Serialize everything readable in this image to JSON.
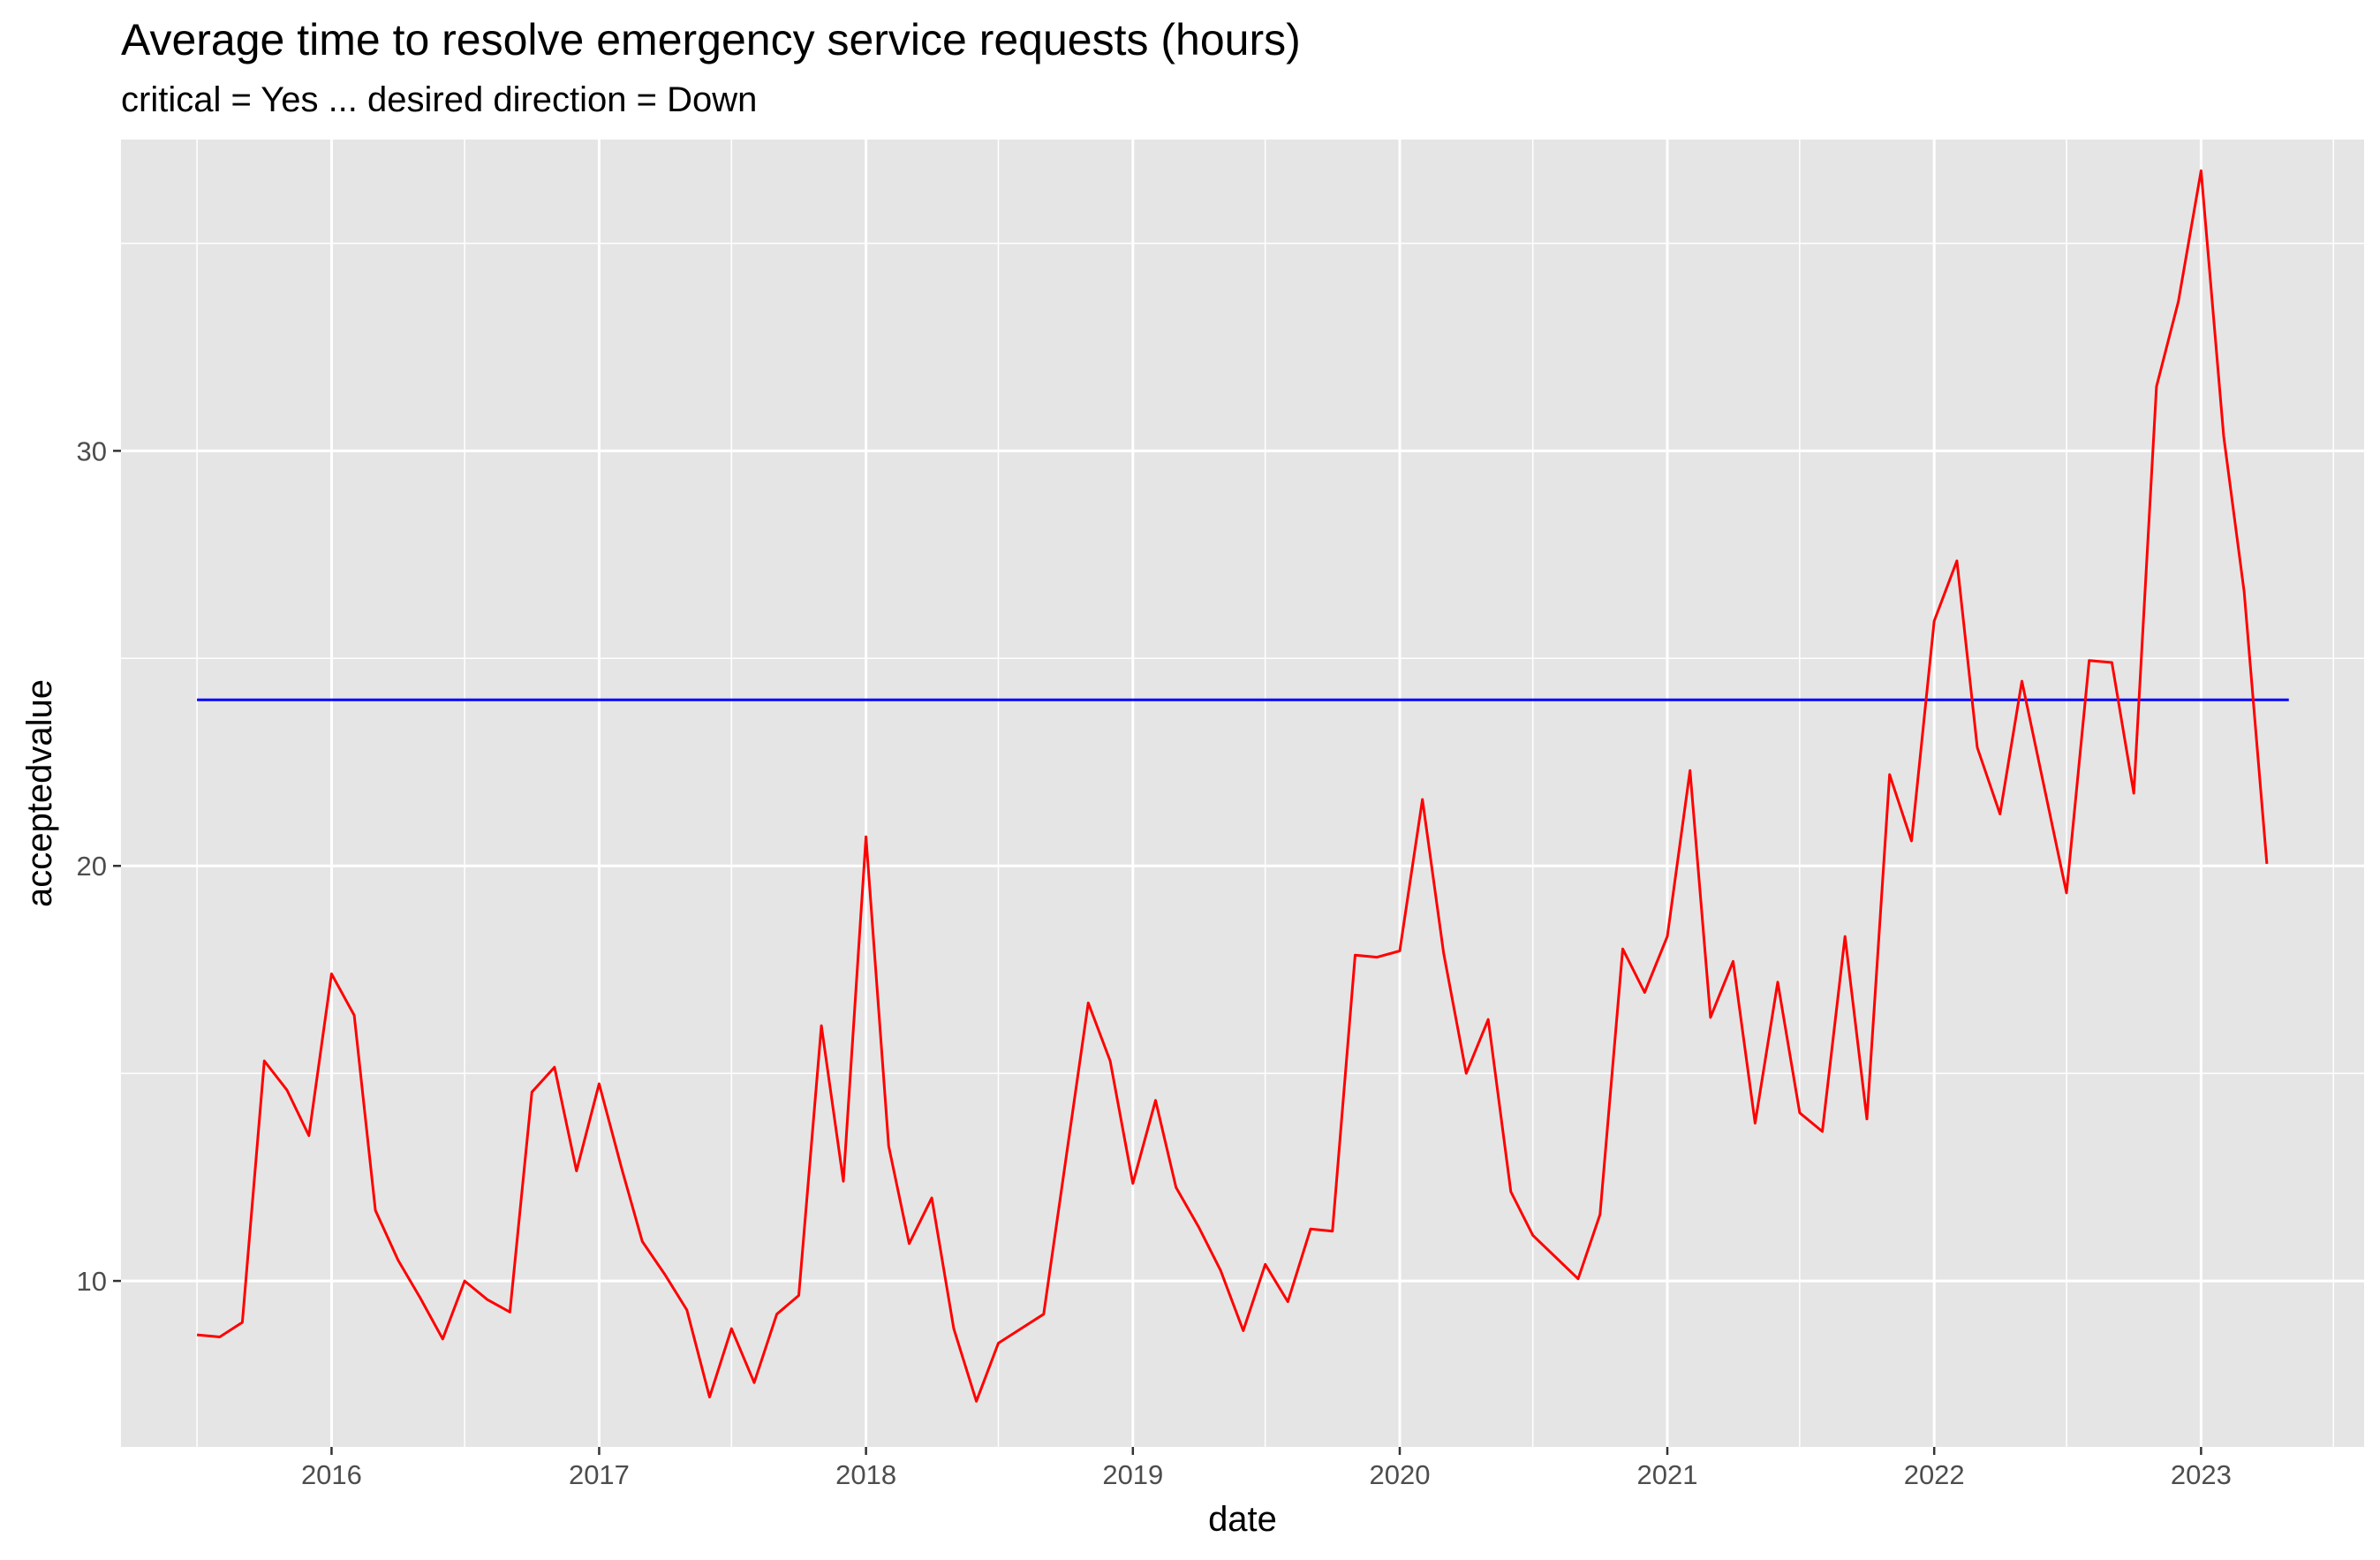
{
  "chart_data": {
    "type": "line",
    "title": "Average time to resolve emergency service requests (hours)",
    "subtitle": "critical = Yes ... desired direction = Down",
    "xlabel": "date",
    "ylabel": "acceptedvalue",
    "x_ticks": [
      "2016",
      "2017",
      "2018",
      "2019",
      "2020",
      "2021",
      "2022",
      "2023"
    ],
    "y_ticks": [
      10,
      20,
      30
    ],
    "xlim": [
      "2015-03-19",
      "2023-08-12"
    ],
    "ylim": [
      6.0,
      37.5
    ],
    "grid": true,
    "colors": {
      "panel": "#e5e5e5",
      "grid": "#ffffff",
      "series": "#ff0000",
      "reference": "#0000ff",
      "tick": "#333333"
    },
    "series": [
      {
        "color": "#ff0000",
        "points": [
          [
            "2015-07-01",
            8.7
          ],
          [
            "2015-08-01",
            8.65
          ],
          [
            "2015-09-01",
            9.0
          ],
          [
            "2015-10-01",
            15.3
          ],
          [
            "2015-11-01",
            14.6
          ],
          [
            "2015-12-01",
            13.5
          ],
          [
            "2016-01-01",
            17.4
          ],
          [
            "2016-02-01",
            16.4
          ],
          [
            "2016-03-01",
            11.7
          ],
          [
            "2016-04-01",
            10.5
          ],
          [
            "2016-05-01",
            9.6
          ],
          [
            "2016-06-01",
            8.6
          ],
          [
            "2016-07-01",
            10.0
          ],
          [
            "2016-08-01",
            9.55
          ],
          [
            "2016-09-01",
            9.25
          ],
          [
            "2016-10-01",
            14.55
          ],
          [
            "2016-11-01",
            15.15
          ],
          [
            "2016-12-01",
            12.65
          ],
          [
            "2017-01-01",
            14.75
          ],
          [
            "2017-02-01",
            12.7
          ],
          [
            "2017-03-01",
            10.95
          ],
          [
            "2017-04-01",
            10.15
          ],
          [
            "2017-05-01",
            9.3
          ],
          [
            "2017-06-01",
            7.2
          ],
          [
            "2017-07-01",
            8.85
          ],
          [
            "2017-08-01",
            7.55
          ],
          [
            "2017-09-01",
            9.2
          ],
          [
            "2017-10-01",
            9.65
          ],
          [
            "2017-11-01",
            16.15
          ],
          [
            "2017-12-01",
            12.4
          ],
          [
            "2018-01-01",
            20.7
          ],
          [
            "2018-02-01",
            13.25
          ],
          [
            "2018-03-01",
            10.9
          ],
          [
            "2018-04-01",
            12.0
          ],
          [
            "2018-05-01",
            8.85
          ],
          [
            "2018-06-01",
            7.1
          ],
          [
            "2018-07-01",
            8.5
          ],
          [
            "2018-09-01",
            9.2
          ],
          [
            "2018-11-01",
            16.7
          ],
          [
            "2018-12-01",
            15.3
          ],
          [
            "2019-01-01",
            12.35
          ],
          [
            "2019-02-01",
            14.35
          ],
          [
            "2019-03-01",
            12.25
          ],
          [
            "2019-04-01",
            11.3
          ],
          [
            "2019-05-01",
            10.25
          ],
          [
            "2019-06-01",
            8.8
          ],
          [
            "2019-07-01",
            10.4
          ],
          [
            "2019-08-01",
            9.5
          ],
          [
            "2019-09-01",
            11.25
          ],
          [
            "2019-10-01",
            11.2
          ],
          [
            "2019-11-01",
            17.85
          ],
          [
            "2019-12-01",
            17.8
          ],
          [
            "2020-01-01",
            17.95
          ],
          [
            "2020-02-01",
            21.6
          ],
          [
            "2020-03-01",
            17.9
          ],
          [
            "2020-04-01",
            15.0
          ],
          [
            "2020-05-01",
            16.3
          ],
          [
            "2020-06-01",
            12.15
          ],
          [
            "2020-07-01",
            11.1
          ],
          [
            "2020-09-01",
            10.05
          ],
          [
            "2020-10-01",
            11.6
          ],
          [
            "2020-11-01",
            18.0
          ],
          [
            "2020-12-01",
            16.95
          ],
          [
            "2021-01-01",
            18.3
          ],
          [
            "2021-02-01",
            22.3
          ],
          [
            "2021-03-01",
            16.35
          ],
          [
            "2021-04-01",
            17.7
          ],
          [
            "2021-05-01",
            13.8
          ],
          [
            "2021-06-01",
            17.2
          ],
          [
            "2021-07-01",
            14.05
          ],
          [
            "2021-08-01",
            13.6
          ],
          [
            "2021-09-01",
            18.3
          ],
          [
            "2021-10-01",
            13.9
          ],
          [
            "2021-11-01",
            22.2
          ],
          [
            "2021-12-01",
            20.6
          ],
          [
            "2022-01-01",
            25.9
          ],
          [
            "2022-02-01",
            27.35
          ],
          [
            "2022-03-01",
            22.85
          ],
          [
            "2022-04-01",
            21.25
          ],
          [
            "2022-05-01",
            24.45
          ],
          [
            "2022-07-01",
            19.35
          ],
          [
            "2022-08-01",
            24.95
          ],
          [
            "2022-09-01",
            24.9
          ],
          [
            "2022-10-01",
            21.75
          ],
          [
            "2022-11-01",
            31.55
          ],
          [
            "2022-12-01",
            33.6
          ],
          [
            "2023-01-01",
            36.75
          ],
          [
            "2023-02-01",
            30.35
          ],
          [
            "2023-03-01",
            26.6
          ],
          [
            "2023-04-01",
            20.05
          ]
        ]
      }
    ],
    "reference_line": {
      "color": "#0000ff",
      "value": 24.0,
      "x_range": [
        "2015-07-01",
        "2023-05-01"
      ]
    }
  }
}
